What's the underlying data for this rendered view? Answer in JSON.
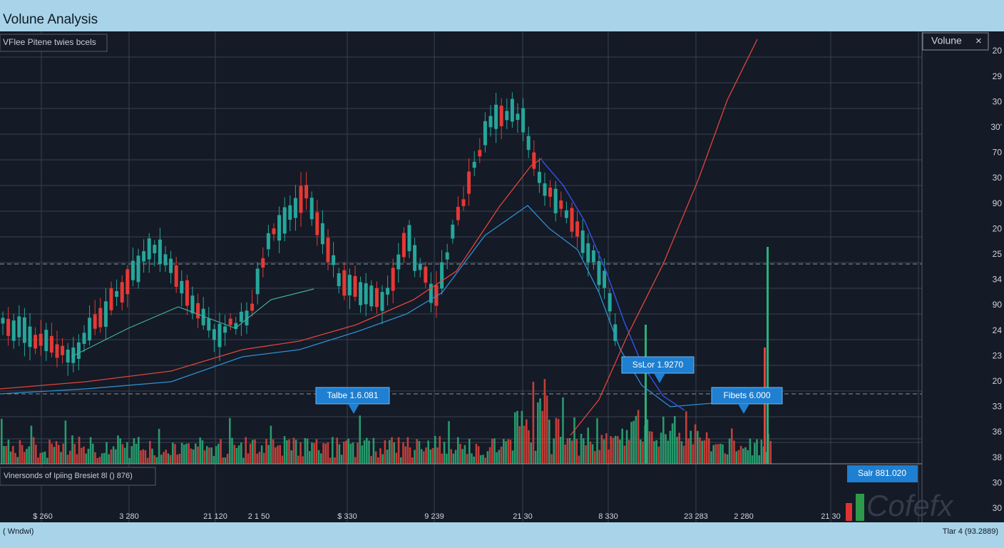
{
  "header": {
    "title": "Volune Analysis"
  },
  "legend": "VFlee Pitene twies bcels",
  "panel": {
    "title": "Volune",
    "close": "×"
  },
  "y_axis_labels": [
    "20",
    "29",
    "30",
    "30'",
    "70",
    "30",
    "90",
    "20",
    "25",
    "34",
    "90",
    "24",
    "23",
    "20",
    "33",
    "36",
    "38",
    "30",
    "30"
  ],
  "x_axis_labels": [
    "$ 260",
    "3 280",
    "21 120",
    "2 1 50",
    "$ 330",
    "9 239",
    "21 30",
    "8 330",
    "23 283",
    "2 280",
    "21 30"
  ],
  "callouts": [
    "Talbe 1.6.081",
    "SsLor 1.9270",
    "Fibets 6.000"
  ],
  "info_box": "Vinersonds of Ipiing Bresiet 8l () 876)",
  "price_box": "Salr 881.020",
  "status": {
    "left": "( Wndwi)",
    "right": "Tlar 4 (93.2889)"
  },
  "watermark": "Cofefx"
}
